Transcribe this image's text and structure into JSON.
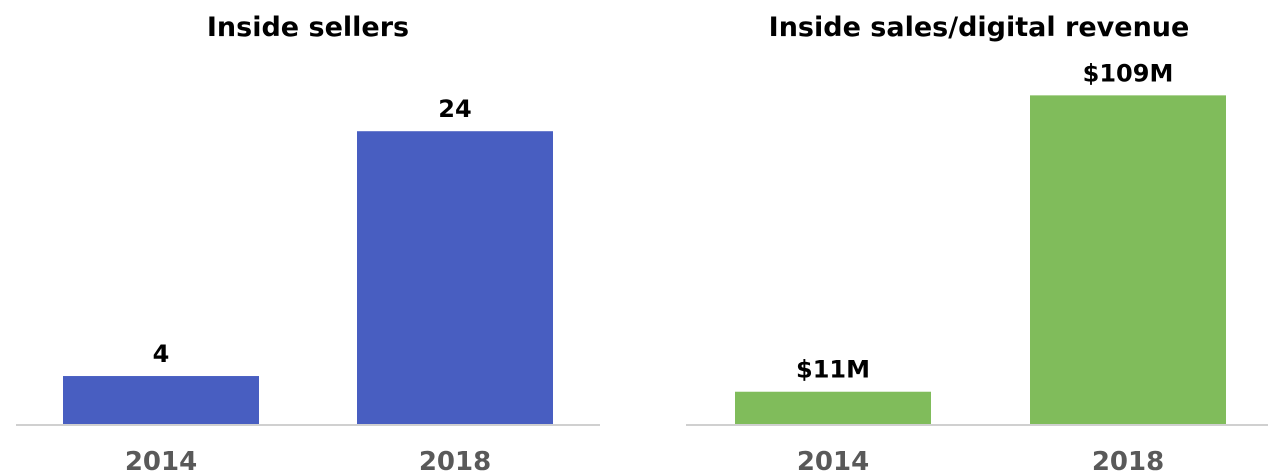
{
  "chart_data": [
    {
      "type": "bar",
      "title": "Inside sellers",
      "categories": [
        "2014",
        "2018"
      ],
      "values": [
        4,
        24
      ],
      "value_labels": [
        "4",
        "24"
      ],
      "ylim": [
        0,
        29
      ],
      "grid": false,
      "bar_color": "#485EC1",
      "axis_color": "#D0D0D0",
      "tick_color": "#595959"
    },
    {
      "type": "bar",
      "title": "Inside sales/digital revenue",
      "categories": [
        "2014",
        "2018"
      ],
      "values": [
        11,
        109
      ],
      "value_labels": [
        "$11M",
        "$109M"
      ],
      "ylim": [
        0,
        124
      ],
      "grid": false,
      "bar_color": "#80BC5B",
      "axis_color": "#D0D0D0",
      "tick_color": "#595959"
    }
  ]
}
